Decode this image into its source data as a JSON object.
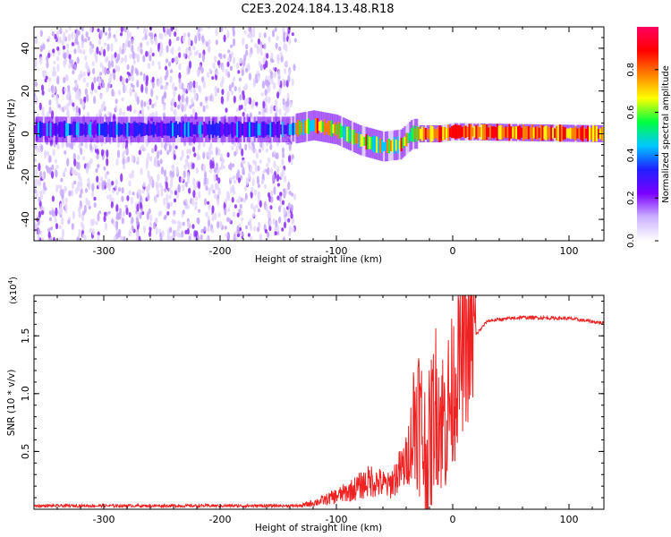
{
  "title": "C2E3.2024.184.13.48.R18",
  "chart_data": [
    {
      "type": "heatmap",
      "xlabel": "Height of straight line (km)",
      "ylabel": "Frequency (Hz)",
      "xlim": [
        -360,
        130
      ],
      "ylim": [
        -50,
        50
      ],
      "x_ticks": [
        -300,
        -200,
        -100,
        0,
        100
      ],
      "y_ticks": [
        -40,
        -20,
        0,
        20,
        40
      ],
      "colorbar": {
        "label": "Normalized spectral amplitude",
        "range": [
          0,
          1
        ],
        "ticks": [
          "0.0",
          "0.2",
          "0.4",
          "0.6",
          "0.8"
        ],
        "colors": [
          "#ffffff",
          "#cbb0ff",
          "#7a00ff",
          "#2020ff",
          "#00c8ff",
          "#00ff40",
          "#ffff00",
          "#ff8000",
          "#ff0000",
          "#ff0060"
        ]
      },
      "ridge_center_hz": [
        {
          "x": -360,
          "y": 2
        },
        {
          "x": -140,
          "y": 2
        },
        {
          "x": -120,
          "y": 4
        },
        {
          "x": -100,
          "y": 2
        },
        {
          "x": -80,
          "y": -3
        },
        {
          "x": -60,
          "y": -6
        },
        {
          "x": -45,
          "y": -5
        },
        {
          "x": -35,
          "y": 0
        },
        {
          "x": -10,
          "y": 0
        },
        {
          "x": 0,
          "y": 1
        },
        {
          "x": 130,
          "y": 0
        }
      ],
      "noise_region_km": [
        -360,
        -135
      ]
    },
    {
      "type": "line",
      "xlabel": "Height of straight line (km)",
      "ylabel": "SNR (10 * v/v)",
      "scale_note": "(x10",
      "scale_exp": "4",
      "scale_close": ")",
      "xlim": [
        -360,
        130
      ],
      "ylim": [
        0,
        18500
      ],
      "x_ticks": [
        -300,
        -200,
        -100,
        0,
        100
      ],
      "y_ticks": [
        5000,
        10000,
        15000
      ],
      "y_tick_labels": [
        "0.5",
        "1.0",
        "1.5"
      ],
      "color": "#ee2222",
      "profile": [
        {
          "x": -360,
          "y": 300
        },
        {
          "x": -130,
          "y": 300
        },
        {
          "x": -110,
          "y": 800
        },
        {
          "x": -90,
          "y": 1500
        },
        {
          "x": -70,
          "y": 2500
        },
        {
          "x": -55,
          "y": 2000
        },
        {
          "x": -40,
          "y": 4000
        },
        {
          "x": -30,
          "y": 9000
        },
        {
          "x": -22,
          "y": 3500
        },
        {
          "x": -15,
          "y": 9500
        },
        {
          "x": -8,
          "y": 7500
        },
        {
          "x": 0,
          "y": 10000
        },
        {
          "x": 5,
          "y": 13000
        },
        {
          "x": 15,
          "y": 14500
        },
        {
          "x": 30,
          "y": 16300
        },
        {
          "x": 60,
          "y": 16600
        },
        {
          "x": 100,
          "y": 16500
        },
        {
          "x": 130,
          "y": 16100
        }
      ]
    }
  ]
}
